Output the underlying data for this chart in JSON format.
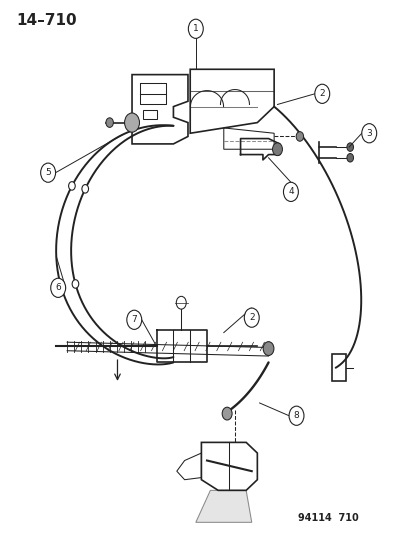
{
  "title": "14–710",
  "footer": "94114  710",
  "bg_color": "#ffffff",
  "line_color": "#222222",
  "title_fontsize": 11,
  "footer_fontsize": 7,
  "callout_r": 0.018,
  "callout_fontsize": 6.5,
  "lw_main": 1.2,
  "lw_thin": 0.75,
  "lw_thick": 2.0,
  "cable_color": "#333333",
  "part_color": "#555555"
}
